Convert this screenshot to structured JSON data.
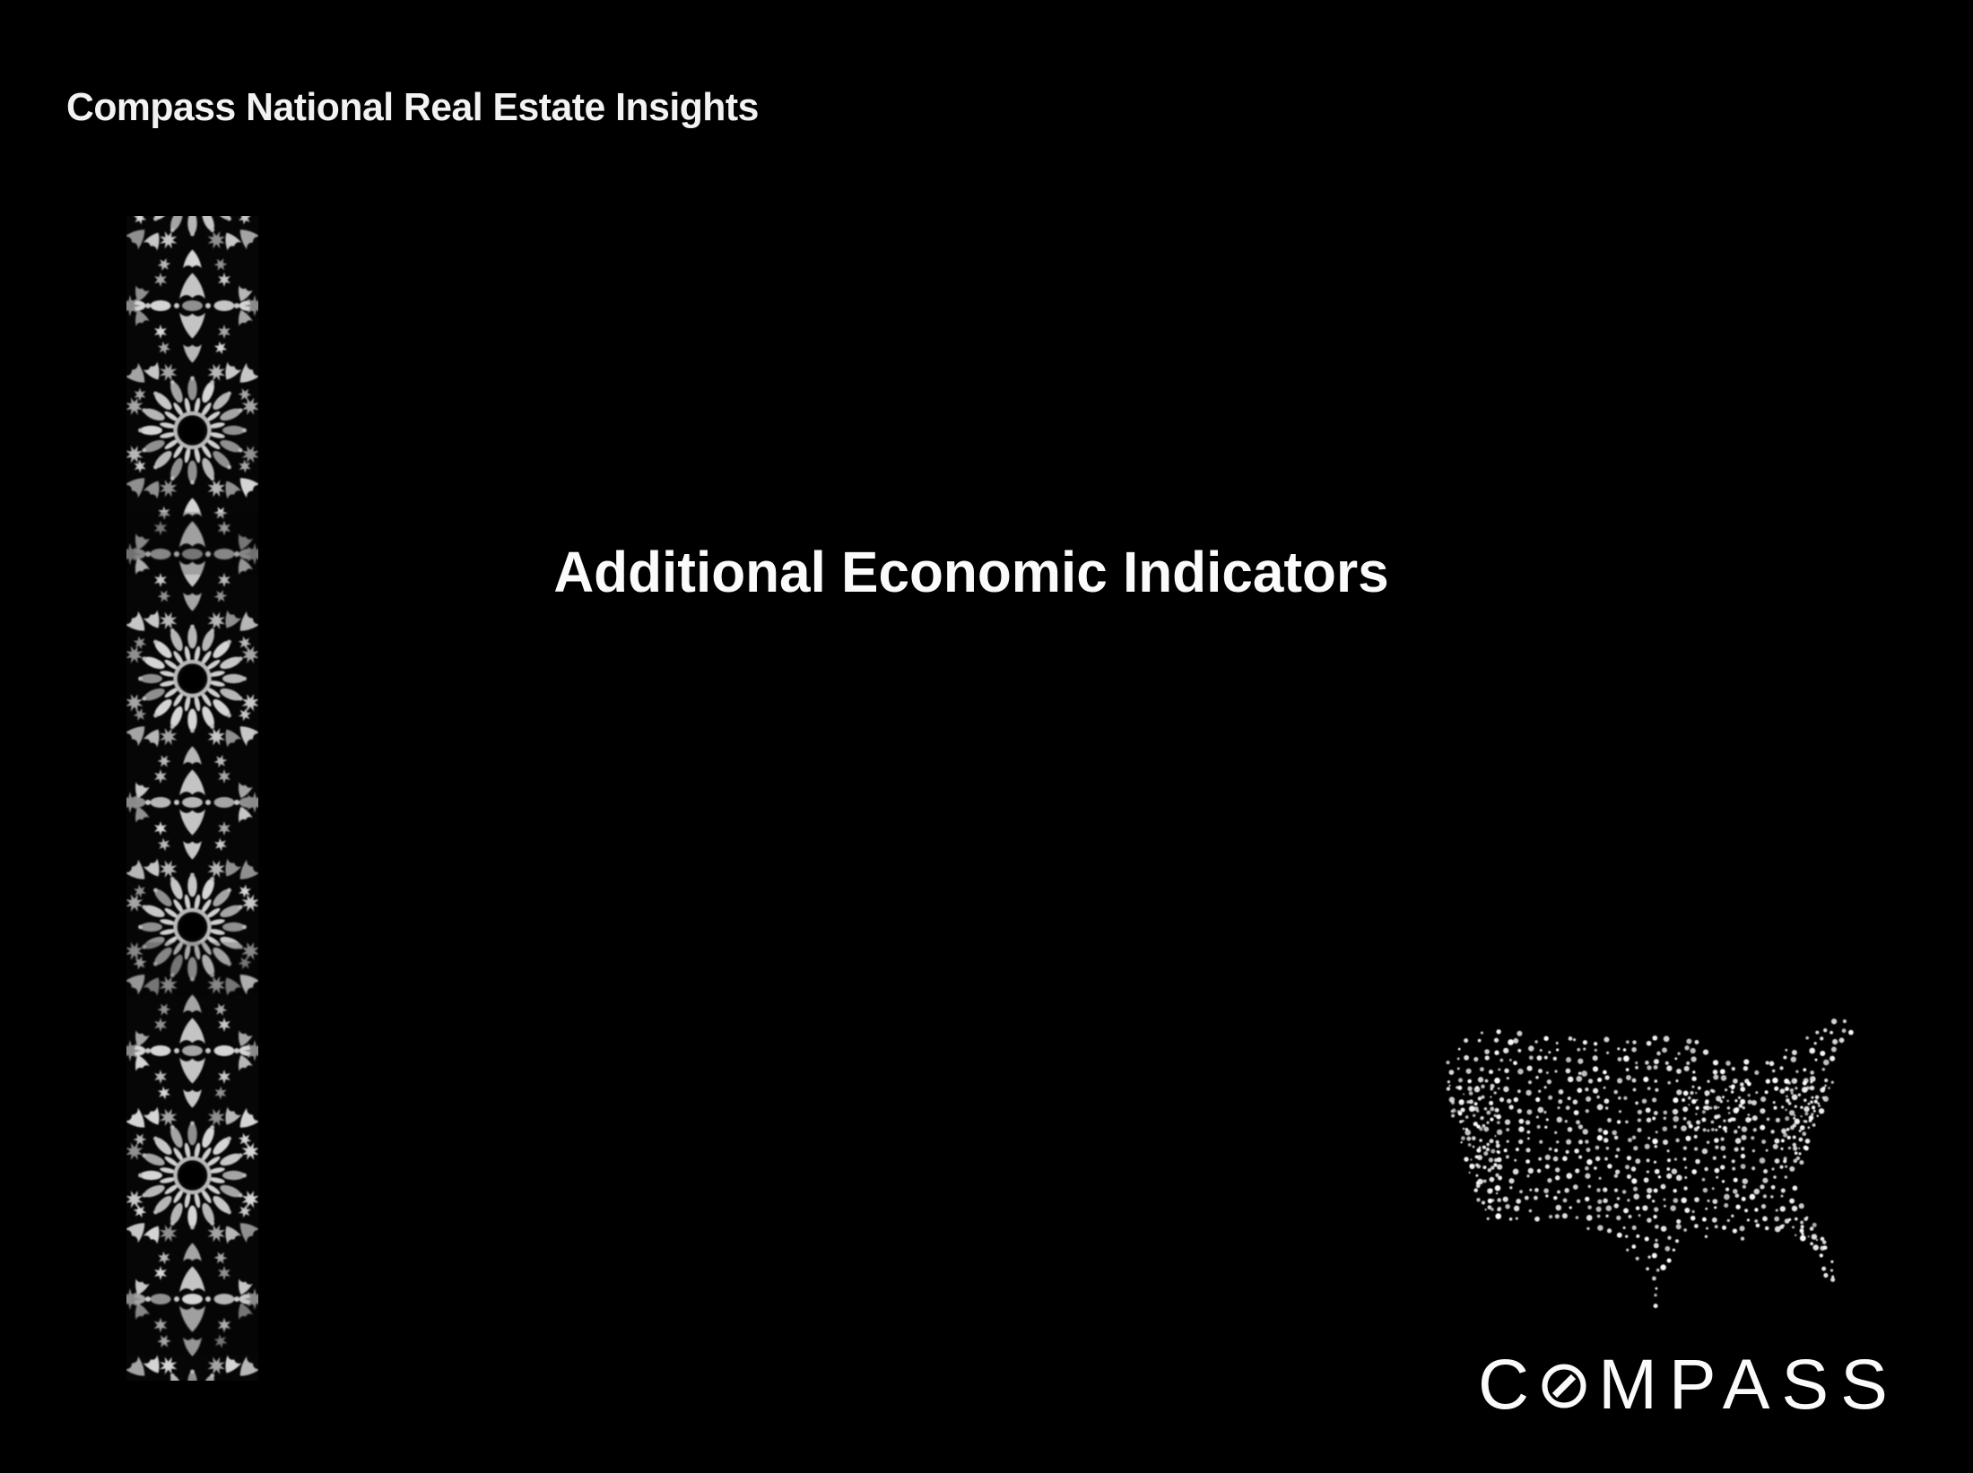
{
  "slide": {
    "header_title": "Compass National Real Estate Insights",
    "title": "Additional Economic Indicators",
    "logo": {
      "text": "COMPASS",
      "pre": "C",
      "post": "MPASS"
    },
    "icons": {
      "pattern_strip": "moroccan-zellige-mosaic-strip",
      "us_map": "usa-halftone-dot-map",
      "logo_o": "compass-o-slash-icon"
    },
    "colors": {
      "background": "#000000",
      "text": "#ffffff",
      "pattern_gray": "#b8b8b8",
      "dot_white": "#ffffff"
    }
  }
}
